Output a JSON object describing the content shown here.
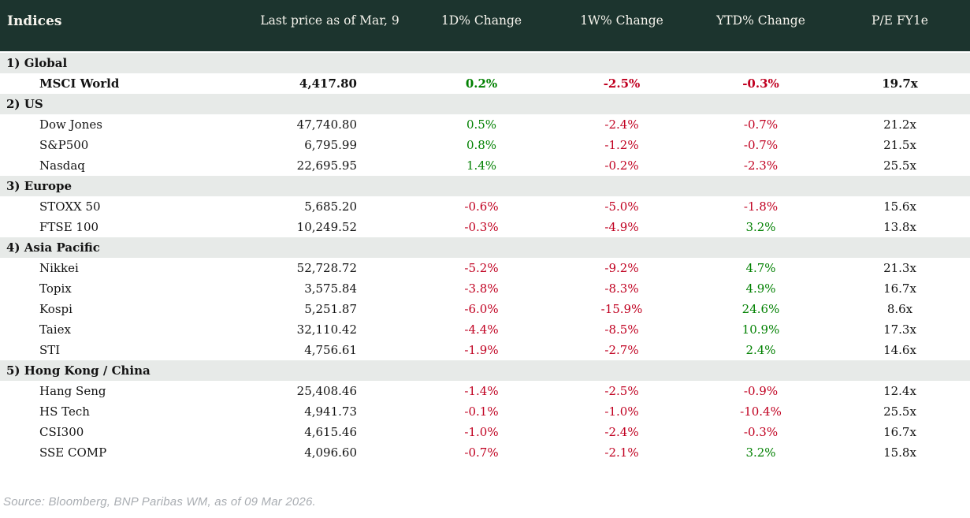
{
  "colors": {
    "header_bg": "#1c342e",
    "header_text": "#f5f3ec",
    "section_bg": "#e7eae8",
    "positive": "#008000",
    "negative": "#c00020",
    "text": "#131313",
    "source_text": "#a9adb2"
  },
  "table": {
    "title": "Indices",
    "columns": [
      "Last price as of Mar, 9",
      "1D% Change",
      "1W% Change",
      "YTD% Change",
      "P/E FY1e"
    ],
    "sections": [
      {
        "label": "1) Global",
        "rows": [
          {
            "name": "MSCI World",
            "price": "4,417.80",
            "d1": "0.2%",
            "w1": "-2.5%",
            "ytd": "-0.3%",
            "pe": "19.7x",
            "bold": true
          }
        ]
      },
      {
        "label": "2) US",
        "rows": [
          {
            "name": "Dow Jones",
            "price": "47,740.80",
            "d1": "0.5%",
            "w1": "-2.4%",
            "ytd": "-0.7%",
            "pe": "21.2x",
            "bold": false
          },
          {
            "name": "S&P500",
            "price": "6,795.99",
            "d1": "0.8%",
            "w1": "-1.2%",
            "ytd": "-0.7%",
            "pe": "21.5x",
            "bold": false
          },
          {
            "name": "Nasdaq",
            "price": "22,695.95",
            "d1": "1.4%",
            "w1": "-0.2%",
            "ytd": "-2.3%",
            "pe": "25.5x",
            "bold": false
          }
        ]
      },
      {
        "label": "3) Europe",
        "rows": [
          {
            "name": "STOXX 50",
            "price": "5,685.20",
            "d1": "-0.6%",
            "w1": "-5.0%",
            "ytd": "-1.8%",
            "pe": "15.6x",
            "bold": false
          },
          {
            "name": "FTSE 100",
            "price": "10,249.52",
            "d1": "-0.3%",
            "w1": "-4.9%",
            "ytd": "3.2%",
            "pe": "13.8x",
            "bold": false
          }
        ]
      },
      {
        "label": "4) Asia Pacific",
        "rows": [
          {
            "name": "Nikkei",
            "price": "52,728.72",
            "d1": "-5.2%",
            "w1": "-9.2%",
            "ytd": "4.7%",
            "pe": "21.3x",
            "bold": false
          },
          {
            "name": "Topix",
            "price": "3,575.84",
            "d1": "-3.8%",
            "w1": "-8.3%",
            "ytd": "4.9%",
            "pe": "16.7x",
            "bold": false
          },
          {
            "name": "Kospi",
            "price": "5,251.87",
            "d1": "-6.0%",
            "w1": "-15.9%",
            "ytd": "24.6%",
            "pe": "8.6x",
            "bold": false
          },
          {
            "name": "Taiex",
            "price": "32,110.42",
            "d1": "-4.4%",
            "w1": "-8.5%",
            "ytd": "10.9%",
            "pe": "17.3x",
            "bold": false
          },
          {
            "name": "STI",
            "price": "4,756.61",
            "d1": "-1.9%",
            "w1": "-2.7%",
            "ytd": "2.4%",
            "pe": "14.6x",
            "bold": false
          }
        ]
      },
      {
        "label": "5) Hong Kong / China",
        "rows": [
          {
            "name": "Hang Seng",
            "price": "25,408.46",
            "d1": "-1.4%",
            "w1": "-2.5%",
            "ytd": "-0.9%",
            "pe": "12.4x",
            "bold": false
          },
          {
            "name": "HS Tech",
            "price": "4,941.73",
            "d1": "-0.1%",
            "w1": "-1.0%",
            "ytd": "-10.4%",
            "pe": "25.5x",
            "bold": false
          },
          {
            "name": "CSI300",
            "price": "4,615.46",
            "d1": "-1.0%",
            "w1": "-2.4%",
            "ytd": "-0.3%",
            "pe": "16.7x",
            "bold": false
          },
          {
            "name": "SSE COMP",
            "price": "4,096.60",
            "d1": "-0.7%",
            "w1": "-2.1%",
            "ytd": "3.2%",
            "pe": "15.8x",
            "bold": false
          }
        ]
      }
    ]
  },
  "footer": {
    "source": "Source: Bloomberg, BNP Paribas WM, as of 09 Mar 2026."
  }
}
